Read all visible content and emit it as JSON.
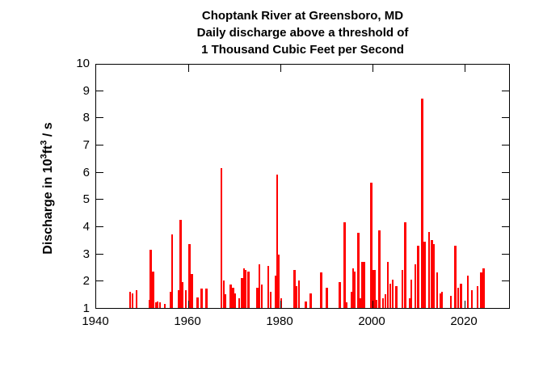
{
  "title": {
    "line1": "Choptank River at Greensboro, MD",
    "line2": "Daily discharge above a threshold of",
    "line3": "1 Thousand Cubic Feet per Second"
  },
  "y_axis_label": {
    "pre": "Discharge in 10",
    "sup1": "3",
    "mid": "ft",
    "sup2": "3",
    "post": " / s"
  },
  "colors": {
    "bar": "#FF0000",
    "axis": "#000000",
    "text": "#000000",
    "background": "#FFFFFF"
  },
  "chart_data": {
    "type": "bar",
    "title": "Choptank River at Greensboro, MD — Daily discharge above a threshold of 1 Thousand Cubic Feet per Second",
    "xlabel": "",
    "ylabel": "Discharge in 10^3 ft^3 / s",
    "xlim": [
      1940,
      2030
    ],
    "ylim": [
      1,
      10
    ],
    "x_ticks": [
      1940,
      1960,
      1980,
      2000,
      2020
    ],
    "y_ticks": [
      1,
      2,
      3,
      4,
      5,
      6,
      7,
      8,
      9,
      10
    ],
    "grid": false,
    "legend": "none",
    "bar_color": "#FF0000",
    "events_format": [
      "year",
      "peak_discharge_thousand_cfs",
      "width_years"
    ],
    "events": [
      [
        1947.4,
        1.6,
        0.35
      ],
      [
        1947.8,
        1.55,
        0.35
      ],
      [
        1948.8,
        1.65,
        0.4
      ],
      [
        1951.5,
        1.3,
        0.35
      ],
      [
        1951.9,
        3.15,
        0.5
      ],
      [
        1952.4,
        2.35,
        0.6
      ],
      [
        1952.9,
        1.2,
        0.3
      ],
      [
        1953.4,
        1.25,
        0.35
      ],
      [
        1953.8,
        1.2,
        0.3
      ],
      [
        1954.9,
        1.15,
        0.35
      ],
      [
        1956.1,
        1.6,
        0.3
      ],
      [
        1956.5,
        3.7,
        0.5
      ],
      [
        1957.9,
        1.65,
        0.45
      ],
      [
        1958.3,
        4.25,
        0.5
      ],
      [
        1958.8,
        1.95,
        0.45
      ],
      [
        1959.5,
        1.65,
        0.4
      ],
      [
        1960.2,
        3.35,
        0.55
      ],
      [
        1960.8,
        2.25,
        0.5
      ],
      [
        1962.0,
        1.4,
        0.4
      ],
      [
        1962.9,
        1.7,
        0.55
      ],
      [
        1964.0,
        1.7,
        0.5
      ],
      [
        1967.2,
        6.15,
        0.5
      ],
      [
        1967.7,
        2.0,
        0.35
      ],
      [
        1968.1,
        1.5,
        0.4
      ],
      [
        1969.2,
        1.85,
        0.5
      ],
      [
        1969.7,
        1.75,
        0.45
      ],
      [
        1970.2,
        1.55,
        0.35
      ],
      [
        1971.1,
        1.35,
        0.4
      ],
      [
        1971.6,
        2.1,
        0.5
      ],
      [
        1972.1,
        2.45,
        0.4
      ],
      [
        1972.5,
        2.4,
        0.4
      ],
      [
        1973.1,
        2.35,
        0.5
      ],
      [
        1975.0,
        1.75,
        0.5
      ],
      [
        1975.5,
        2.6,
        0.4
      ],
      [
        1975.9,
        1.85,
        0.4
      ],
      [
        1977.4,
        2.55,
        0.45
      ],
      [
        1977.8,
        1.6,
        0.35
      ],
      [
        1978.9,
        2.2,
        0.4
      ],
      [
        1979.3,
        5.9,
        0.45
      ],
      [
        1979.7,
        2.95,
        0.4
      ],
      [
        1980.1,
        1.35,
        0.35
      ],
      [
        1983.0,
        2.4,
        0.5
      ],
      [
        1983.5,
        1.8,
        0.4
      ],
      [
        1984.0,
        2.0,
        0.45
      ],
      [
        1985.5,
        1.25,
        0.45
      ],
      [
        1986.6,
        1.55,
        0.5
      ],
      [
        1988.8,
        2.3,
        0.5
      ],
      [
        1990.1,
        1.75,
        0.45
      ],
      [
        1992.9,
        1.95,
        0.45
      ],
      [
        1993.9,
        4.15,
        0.55
      ],
      [
        1994.4,
        1.2,
        0.35
      ],
      [
        1995.4,
        1.6,
        0.45
      ],
      [
        1995.8,
        2.45,
        0.45
      ],
      [
        1996.2,
        2.35,
        0.4
      ],
      [
        1996.9,
        3.75,
        0.5
      ],
      [
        1997.3,
        1.35,
        0.3
      ],
      [
        1998.0,
        2.7,
        1.0
      ],
      [
        1999.8,
        5.6,
        0.5
      ],
      [
        2000.4,
        2.4,
        0.7
      ],
      [
        2000.9,
        1.3,
        0.3
      ],
      [
        2001.5,
        3.85,
        0.5
      ],
      [
        2002.2,
        1.35,
        0.35
      ],
      [
        2002.8,
        1.5,
        0.35
      ],
      [
        2003.3,
        2.7,
        0.45
      ],
      [
        2003.9,
        1.9,
        0.4
      ],
      [
        2004.4,
        2.05,
        0.45
      ],
      [
        2005.2,
        1.8,
        0.45
      ],
      [
        2006.5,
        2.4,
        0.45
      ],
      [
        2007.1,
        4.15,
        0.5
      ],
      [
        2008.0,
        1.35,
        0.35
      ],
      [
        2008.4,
        2.05,
        0.45
      ],
      [
        2009.3,
        2.6,
        0.5
      ],
      [
        2009.9,
        3.3,
        0.45
      ],
      [
        2010.8,
        8.7,
        0.5
      ],
      [
        2011.3,
        3.45,
        0.5
      ],
      [
        2012.3,
        3.8,
        0.45
      ],
      [
        2012.9,
        3.5,
        0.4
      ],
      [
        2013.3,
        3.35,
        0.4
      ],
      [
        2014.0,
        2.3,
        0.45
      ],
      [
        2014.7,
        1.55,
        0.35
      ],
      [
        2015.1,
        1.6,
        0.35
      ],
      [
        2017.0,
        1.45,
        0.4
      ],
      [
        2018.0,
        3.3,
        0.45
      ],
      [
        2018.6,
        1.75,
        0.4
      ],
      [
        2019.2,
        1.9,
        0.4
      ],
      [
        2020.7,
        2.2,
        0.45
      ],
      [
        2021.6,
        1.65,
        0.4
      ],
      [
        2022.8,
        1.8,
        0.4
      ],
      [
        2023.6,
        2.3,
        0.45
      ],
      [
        2024.1,
        2.45,
        0.45
      ]
    ]
  }
}
